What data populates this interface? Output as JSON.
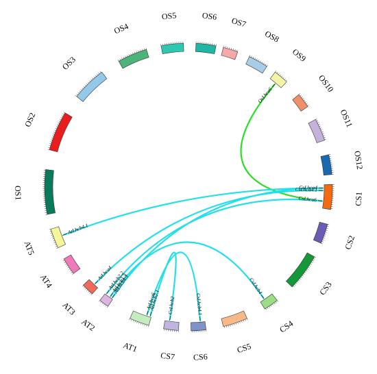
{
  "chromosomes": [
    {
      "id": "OS1",
      "label": "OS1",
      "color": "#0b7a5a"
    },
    {
      "id": "OS2",
      "label": "OS2",
      "color": "#e81e1e"
    },
    {
      "id": "OS3",
      "label": "OS3",
      "color": "#93c8e8"
    },
    {
      "id": "OS4",
      "label": "OS4",
      "color": "#4cb37a"
    },
    {
      "id": "OS5",
      "label": "OS5",
      "color": "#2ec7b0"
    },
    {
      "id": "OS6",
      "label": "OS6",
      "color": "#1fb6a6"
    },
    {
      "id": "OS7",
      "label": "OS7",
      "color": "#f7a9a9"
    },
    {
      "id": "OS8",
      "label": "OS8",
      "color": "#a8cde8"
    },
    {
      "id": "OS9",
      "label": "OS9",
      "color": "#f2f4a6"
    },
    {
      "id": "OS10",
      "label": "OS10",
      "color": "#f08f6a"
    },
    {
      "id": "OS11",
      "label": "OS11",
      "color": "#c4b2dd"
    },
    {
      "id": "OS12",
      "label": "OS12",
      "color": "#1869b0"
    },
    {
      "id": "CS1",
      "label": "CS1",
      "color": "#f26a12"
    },
    {
      "id": "CS2",
      "label": "CS2",
      "color": "#6b5bb5"
    },
    {
      "id": "CS3",
      "label": "CS3",
      "color": "#14983a"
    },
    {
      "id": "CS4",
      "label": "CS4",
      "color": "#9bdc86"
    },
    {
      "id": "CS5",
      "label": "CS5",
      "color": "#f7b98a"
    },
    {
      "id": "CS6",
      "label": "CS6",
      "color": "#7e93c9"
    },
    {
      "id": "CS7",
      "label": "CS7",
      "color": "#c0b4e0"
    },
    {
      "id": "AT1",
      "label": "AT1",
      "color": "#c6ebc0"
    },
    {
      "id": "AT2",
      "label": "AT2",
      "color": "#e0b4e0"
    },
    {
      "id": "AT3",
      "label": "AT3",
      "color": "#ef6a5a"
    },
    {
      "id": "AT4",
      "label": "AT4",
      "color": "#f07ab8"
    },
    {
      "id": "AT5",
      "label": "AT5",
      "color": "#f5f59a"
    }
  ],
  "genes": [
    {
      "label": "OsLhca6",
      "chrom": "OS9"
    },
    {
      "label": "CsLhca4",
      "chrom": "CS1"
    },
    {
      "label": "CsLhca4.1",
      "chrom": "CS1"
    },
    {
      "label": "CsLhca6",
      "chrom": "CS1"
    },
    {
      "label": "CsLhcb4",
      "chrom": "CS4"
    },
    {
      "label": "CsLhcb4.1",
      "chrom": "CS6"
    },
    {
      "label": "CsLhcb2",
      "chrom": "CS7"
    },
    {
      "label": "AtLhcb2.1",
      "chrom": "AT1"
    },
    {
      "label": "AtLhca6",
      "chrom": "AT1"
    },
    {
      "label": "AtLhcb4.3",
      "chrom": "AT2"
    },
    {
      "label": "AtLhcb1.3",
      "chrom": "AT2"
    },
    {
      "label": "AtLhcb2.2",
      "chrom": "AT2"
    },
    {
      "label": "AtLhca4",
      "chrom": "AT3"
    },
    {
      "label": "AtLhcb4.1",
      "chrom": "AT5"
    }
  ],
  "links": [
    {
      "from": "OsLhca6",
      "to": "CsLhca6",
      "color": "#22e022"
    },
    {
      "from": "AtLhcb4.1",
      "to": "CsLhca4",
      "color": "#22e0e8"
    },
    {
      "from": "AtLhca4",
      "to": "CsLhca4.1",
      "color": "#22e0e8"
    },
    {
      "from": "AtLhcb4.3",
      "to": "CsLhca4",
      "color": "#22e0e8"
    },
    {
      "from": "AtLhcb2.2",
      "to": "CsLhca6",
      "color": "#22e0e8"
    },
    {
      "from": "AtLhcb1.3",
      "to": "CsLhcb4",
      "color": "#22e0e8"
    },
    {
      "from": "AtLhcb2.1",
      "to": "CsLhcb2",
      "color": "#22e0e8"
    },
    {
      "from": "AtLhca6",
      "to": "CsLhcb4.1",
      "color": "#22e0e8"
    }
  ]
}
